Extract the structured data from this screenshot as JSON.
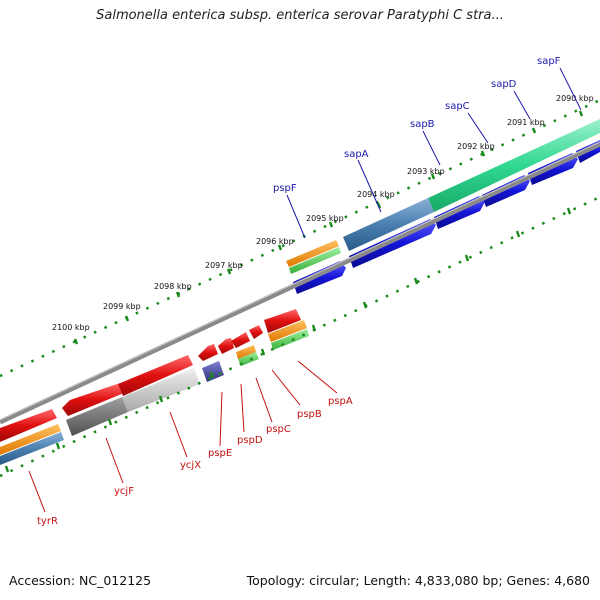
{
  "title": "Salmonella enterica subsp. enterica serovar Paratyphi C stra...",
  "footer": {
    "accession": "Accession: NC_012125",
    "topology": "Topology: circular; Length: 4,833,080 bp; Genes: 4,680"
  },
  "kbp_labels": [
    "2090 kbp",
    "2091 kbp",
    "2092 kbp",
    "2093 kbp",
    "2094 kbp",
    "2095 kbp",
    "2096 kbp",
    "2097 kbp",
    "2098 kbp",
    "2099 kbp",
    "2100 kbp"
  ],
  "genes_upper": [
    "sapF",
    "sapD",
    "sapC",
    "sapB",
    "sapA",
    "pspF"
  ],
  "genes_lower": [
    "pspA",
    "pspB",
    "pspC",
    "pspD",
    "pspE",
    "ycjX",
    "ycjF",
    "tyrR"
  ],
  "colors": {
    "forward_gene": "#1414d8",
    "reverse_gene": "#e01010",
    "cds_orange": "#f08a0a",
    "cds_green": "#4ec84e",
    "cds_teal": "#30d890",
    "cds_steel": "#4a80b0",
    "tick_green": "#1a8a1a",
    "backbone": "#8a8a8a"
  }
}
